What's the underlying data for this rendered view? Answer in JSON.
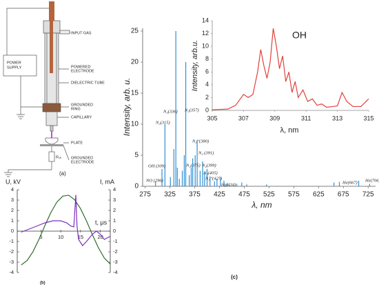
{
  "diagram": {
    "input_gas": "INPUT GAS",
    "powered_electrode": [
      "POWERED",
      "ELECTRODE"
    ],
    "dielectric_tube": "DIELECTRIC TUBE",
    "power_supply": [
      "POWER",
      "SUPPLY"
    ],
    "grounded_ring": [
      "GROUNDED",
      "RING"
    ],
    "capillary": "CAPILLARY",
    "plate": "PLATE",
    "resistor": "Rₛₕ",
    "grounded_electrode": [
      "GROUNDED",
      "ELECTRODE"
    ],
    "label": "(a)"
  },
  "chart_data": [
    {
      "type": "line",
      "label": "(b)",
      "xlabel": "t, μs",
      "ylabel": "U, kV",
      "y2label": "I, mA",
      "xlim": [
        -1,
        22.5
      ],
      "xticks": [
        5,
        10,
        15,
        20
      ],
      "ylim": [
        -4,
        4
      ],
      "yticks": [
        -4,
        -3,
        -2,
        -1,
        0,
        1,
        2,
        3,
        4
      ],
      "y2lim": [
        -4,
        4
      ],
      "y2ticks": [
        -4,
        -3,
        -2,
        -1,
        0,
        1,
        2,
        3,
        4
      ],
      "series": [
        {
          "color": "#2d6b2a",
          "x": [
            0,
            1.5,
            3,
            4.5,
            6,
            7.5,
            9,
            10.5,
            12,
            13.5,
            15,
            16.5,
            18,
            19.5,
            21,
            22.5
          ],
          "values": [
            -3.27,
            -2.84,
            -1.97,
            -0.78,
            0.55,
            1.8,
            2.8,
            3.38,
            3.47,
            3.04,
            2.17,
            0.98,
            -0.35,
            -1.6,
            -2.6,
            -3.18
          ]
        },
        {
          "color": "#7b2fbe",
          "axis": "y2",
          "x": [
            0,
            2,
            4,
            6,
            8,
            10,
            11.5,
            12.5,
            13.3,
            13.8,
            14.1,
            14.5,
            15.5,
            16.5,
            18,
            19,
            20,
            21,
            22.5
          ],
          "values": [
            -0.1,
            0.2,
            0.5,
            0.8,
            1.0,
            1.0,
            0.8,
            0.5,
            0.4,
            3.5,
            0.5,
            -0.8,
            -1.4,
            -1.0,
            -0.3,
            0,
            -0.3,
            -0.8,
            -0.5
          ]
        }
      ]
    },
    {
      "type": "stem",
      "label": "(c)",
      "xlabel": "λ, nm",
      "ylabel": "Intensity, arb. u.",
      "xlim": [
        270,
        740
      ],
      "xticks": [
        275,
        325,
        375,
        425,
        475,
        525,
        575,
        625,
        675,
        725
      ],
      "ylim": [
        0,
        25
      ],
      "yticks": [
        0,
        5,
        10,
        15,
        20,
        25
      ],
      "color": "#2e8fd4",
      "x": [
        296,
        309,
        315,
        326,
        333,
        337,
        340,
        344,
        350,
        354,
        357,
        364,
        368,
        371,
        376,
        380,
        386,
        391,
        395,
        400,
        406,
        415,
        420,
        427,
        434,
        441,
        460,
        470,
        480,
        520,
        656,
        667,
        706,
        728
      ],
      "values": [
        0.8,
        2.8,
        10,
        1.5,
        6,
        25,
        3,
        1.2,
        2.5,
        5,
        20,
        1.8,
        3,
        4.5,
        5,
        7.5,
        2.5,
        4,
        2.2,
        2.8,
        1.6,
        0.8,
        1.2,
        1.4,
        0.9,
        0.5,
        0.4,
        0.6,
        0.3,
        0.3,
        0.6,
        0.7,
        0.9,
        0.4
      ],
      "annotations": [
        "NO (296)",
        "OH (309)",
        "N₂(315)",
        "N₂(336)",
        "N₂(357)",
        "N₂⁺(380)",
        "N₂(375)",
        "N₂ (391)",
        "N₂(399)",
        "N₂(405)",
        "N₂⁺(427)",
        "Hγ(434)",
        "He(667)",
        "He(706)"
      ]
    },
    {
      "type": "line",
      "title": "OH",
      "xlabel": "λ, nm",
      "ylabel": "Intensity, arb.u.",
      "xlim": [
        305,
        315
      ],
      "xticks": [
        305,
        307,
        309,
        311,
        313,
        315
      ],
      "ylim": [
        0,
        14
      ],
      "yticks": [
        0,
        2,
        4,
        6,
        8,
        10,
        12,
        14
      ],
      "series": [
        {
          "color": "#e0403a",
          "x": [
            305,
            306,
            306.5,
            307,
            307.3,
            307.6,
            307.9,
            308.1,
            308.3,
            308.5,
            308.7,
            308.9,
            309.1,
            309.3,
            309.5,
            309.7,
            309.9,
            310.1,
            310.3,
            310.5,
            310.8,
            311.1,
            311.4,
            311.7,
            312,
            312.3,
            312.7,
            313,
            313.3,
            313.6,
            314,
            314.5,
            315
          ],
          "values": [
            0.1,
            0.2,
            0.8,
            2.5,
            2.0,
            2.5,
            6,
            9.5,
            7,
            5,
            7.5,
            12.8,
            10,
            6.5,
            8.5,
            4.5,
            6,
            2.8,
            4.5,
            2,
            3.2,
            1.4,
            1.8,
            0.8,
            1,
            0.5,
            0.6,
            0.7,
            2.8,
            1.4,
            0.6,
            0.6,
            1.8
          ]
        }
      ]
    }
  ]
}
